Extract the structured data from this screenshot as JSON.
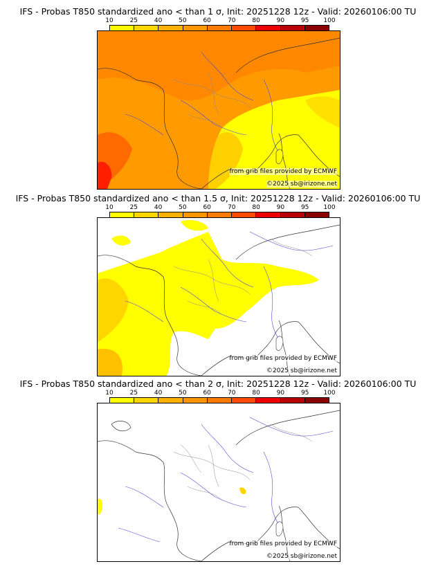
{
  "legend": {
    "ticks": [
      "10",
      "25",
      "40",
      "50",
      "60",
      "70",
      "80",
      "90",
      "95",
      "100"
    ],
    "colors": [
      "#ffff00",
      "#ffd700",
      "#ffb000",
      "#ff9600",
      "#ff7c00",
      "#ff4a00",
      "#ee0000",
      "#b80000",
      "#880000",
      "#560000"
    ]
  },
  "panels": [
    {
      "title": "IFS - Probas T850  standardized ano < than 1 σ, Init: 20251228 12z - Valid: 20260106:00 TU",
      "credit_source": "from grib files provided by ECMWF",
      "credit_copyright": "©2025 sb@irizone.net"
    },
    {
      "title": "IFS - Probas T850  standardized ano < than 1.5 σ, Init: 20251228 12z - Valid: 20260106:00 TU",
      "credit_source": "from grib files provided by ECMWF",
      "credit_copyright": "©2025 sb@irizone.net"
    },
    {
      "title": "IFS - Probas T850  standardized ano < than 2 σ, Init: 20251228 12z - Valid: 20260106:00 TU",
      "credit_source": "from grib files provided by ECMWF",
      "credit_copyright": "©2025 sb@irizone.net"
    }
  ]
}
